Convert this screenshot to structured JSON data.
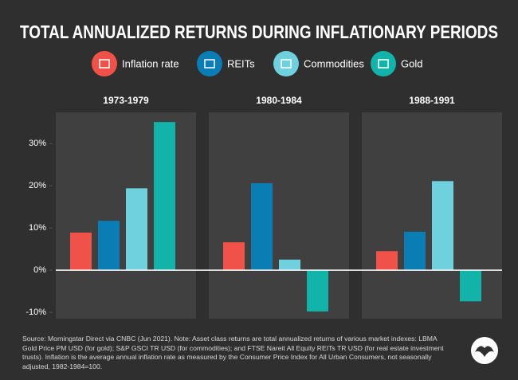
{
  "chart_data": {
    "type": "bar",
    "title": "TOTAL ANNUALIZED RETURNS DURING INFLATIONARY PERIODS",
    "categories": [
      "1973-1979",
      "1980-1984",
      "1988-1991"
    ],
    "series": [
      {
        "name": "Inflation rate",
        "color": "#f0524a",
        "values": [
          8.9,
          6.6,
          4.5
        ]
      },
      {
        "name": "REITs",
        "color": "#0a7db5",
        "values": [
          11.7,
          20.6,
          9.1
        ]
      },
      {
        "name": "Commodities",
        "color": "#6fd0de",
        "values": [
          19.4,
          2.5,
          21.1
        ]
      },
      {
        "name": "Gold",
        "color": "#12b3a8",
        "values": [
          35.1,
          -9.8,
          -7.4
        ]
      }
    ],
    "ylim": [
      -11.5,
      37.4
    ],
    "yticks": [
      {
        "value": -10,
        "label": "-10%"
      },
      {
        "value": 0,
        "label": "0%"
      },
      {
        "value": 10,
        "label": "10%"
      },
      {
        "value": 20,
        "label": "20%"
      },
      {
        "value": 30,
        "label": "30%"
      }
    ],
    "source": "Source: Morningstar Direct via CNBC (Jun 2021). Note: Asset class returns are total annualized returns of various market indexes: LBMA Gold Price PM USD (for gold); S&P GSCI TR USD (for commodities); and FTSE Nareit All Equity REITs TR USD (for real estate investment trusts). Inflation is the average annual inflation rate as measured by the Consumer Price Index for All Urban Consumers, not seasonally adjusted, 1982-1984=100."
  }
}
